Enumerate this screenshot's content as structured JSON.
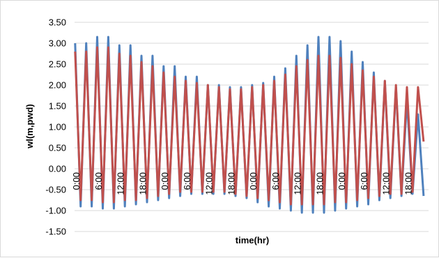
{
  "chart_data": {
    "type": "line",
    "title": "",
    "xlabel": "time(hr)",
    "ylabel": "wl(m,pwd)",
    "ylim": [
      -1.5,
      3.5
    ],
    "y_ticks": [
      "3.50",
      "3.00",
      "2.50",
      "2.00",
      "1.50",
      "1.00",
      "0.50",
      "0.00",
      "-0.50",
      "-1.00",
      "-1.50"
    ],
    "x_ticks": [
      "0:00",
      "6:00",
      "12:00",
      "18:00",
      "0:00",
      "6:00",
      "12:00",
      "18:00",
      "0:00",
      "6:00",
      "12:00",
      "18:00",
      "0:00",
      "6:00",
      "12:00",
      "18:00"
    ],
    "x_unit_hours_per_tick": 6,
    "grid": "horizontal",
    "legend": "none",
    "series": [
      {
        "color": "#4f81bd",
        "peaks": [
          3.0,
          3.0,
          3.15,
          3.15,
          2.95,
          2.95,
          2.7,
          2.7,
          2.45,
          2.45,
          2.2,
          2.2,
          2.0,
          2.0,
          1.95,
          1.95,
          2.0,
          2.05,
          2.2,
          2.4,
          2.7,
          2.95,
          3.15,
          3.15,
          3.05,
          2.8,
          2.55,
          2.3,
          2.1,
          1.95,
          1.65,
          1.3
        ],
        "troughs": [
          -0.9,
          -0.9,
          -0.95,
          -0.95,
          -0.9,
          -0.85,
          -0.8,
          -0.75,
          -0.7,
          -0.65,
          -0.6,
          -0.6,
          -0.6,
          -0.6,
          -0.65,
          -0.7,
          -0.8,
          -0.9,
          -0.95,
          -1.0,
          -1.05,
          -1.05,
          -1.05,
          -1.0,
          -0.95,
          -0.9,
          -0.85,
          -0.75,
          -0.7,
          -0.65,
          -0.6,
          -0.65
        ]
      },
      {
        "color": "#c0504d",
        "peaks": [
          2.8,
          2.8,
          2.9,
          2.9,
          2.75,
          2.7,
          2.55,
          2.45,
          2.3,
          2.2,
          2.1,
          2.05,
          2.0,
          1.95,
          1.9,
          1.9,
          1.95,
          2.0,
          2.1,
          2.25,
          2.45,
          2.6,
          2.7,
          2.7,
          2.65,
          2.5,
          2.35,
          2.2,
          2.1,
          2.0,
          1.95,
          1.95
        ],
        "troughs": [
          -0.75,
          -0.75,
          -0.8,
          -0.8,
          -0.75,
          -0.75,
          -0.7,
          -0.65,
          -0.6,
          -0.55,
          -0.55,
          -0.55,
          -0.55,
          -0.55,
          -0.6,
          -0.65,
          -0.7,
          -0.75,
          -0.8,
          -0.85,
          -0.85,
          -0.85,
          -0.85,
          -0.8,
          -0.8,
          -0.75,
          -0.7,
          -0.65,
          -0.6,
          -0.6,
          -0.55,
          0.65
        ]
      }
    ]
  }
}
